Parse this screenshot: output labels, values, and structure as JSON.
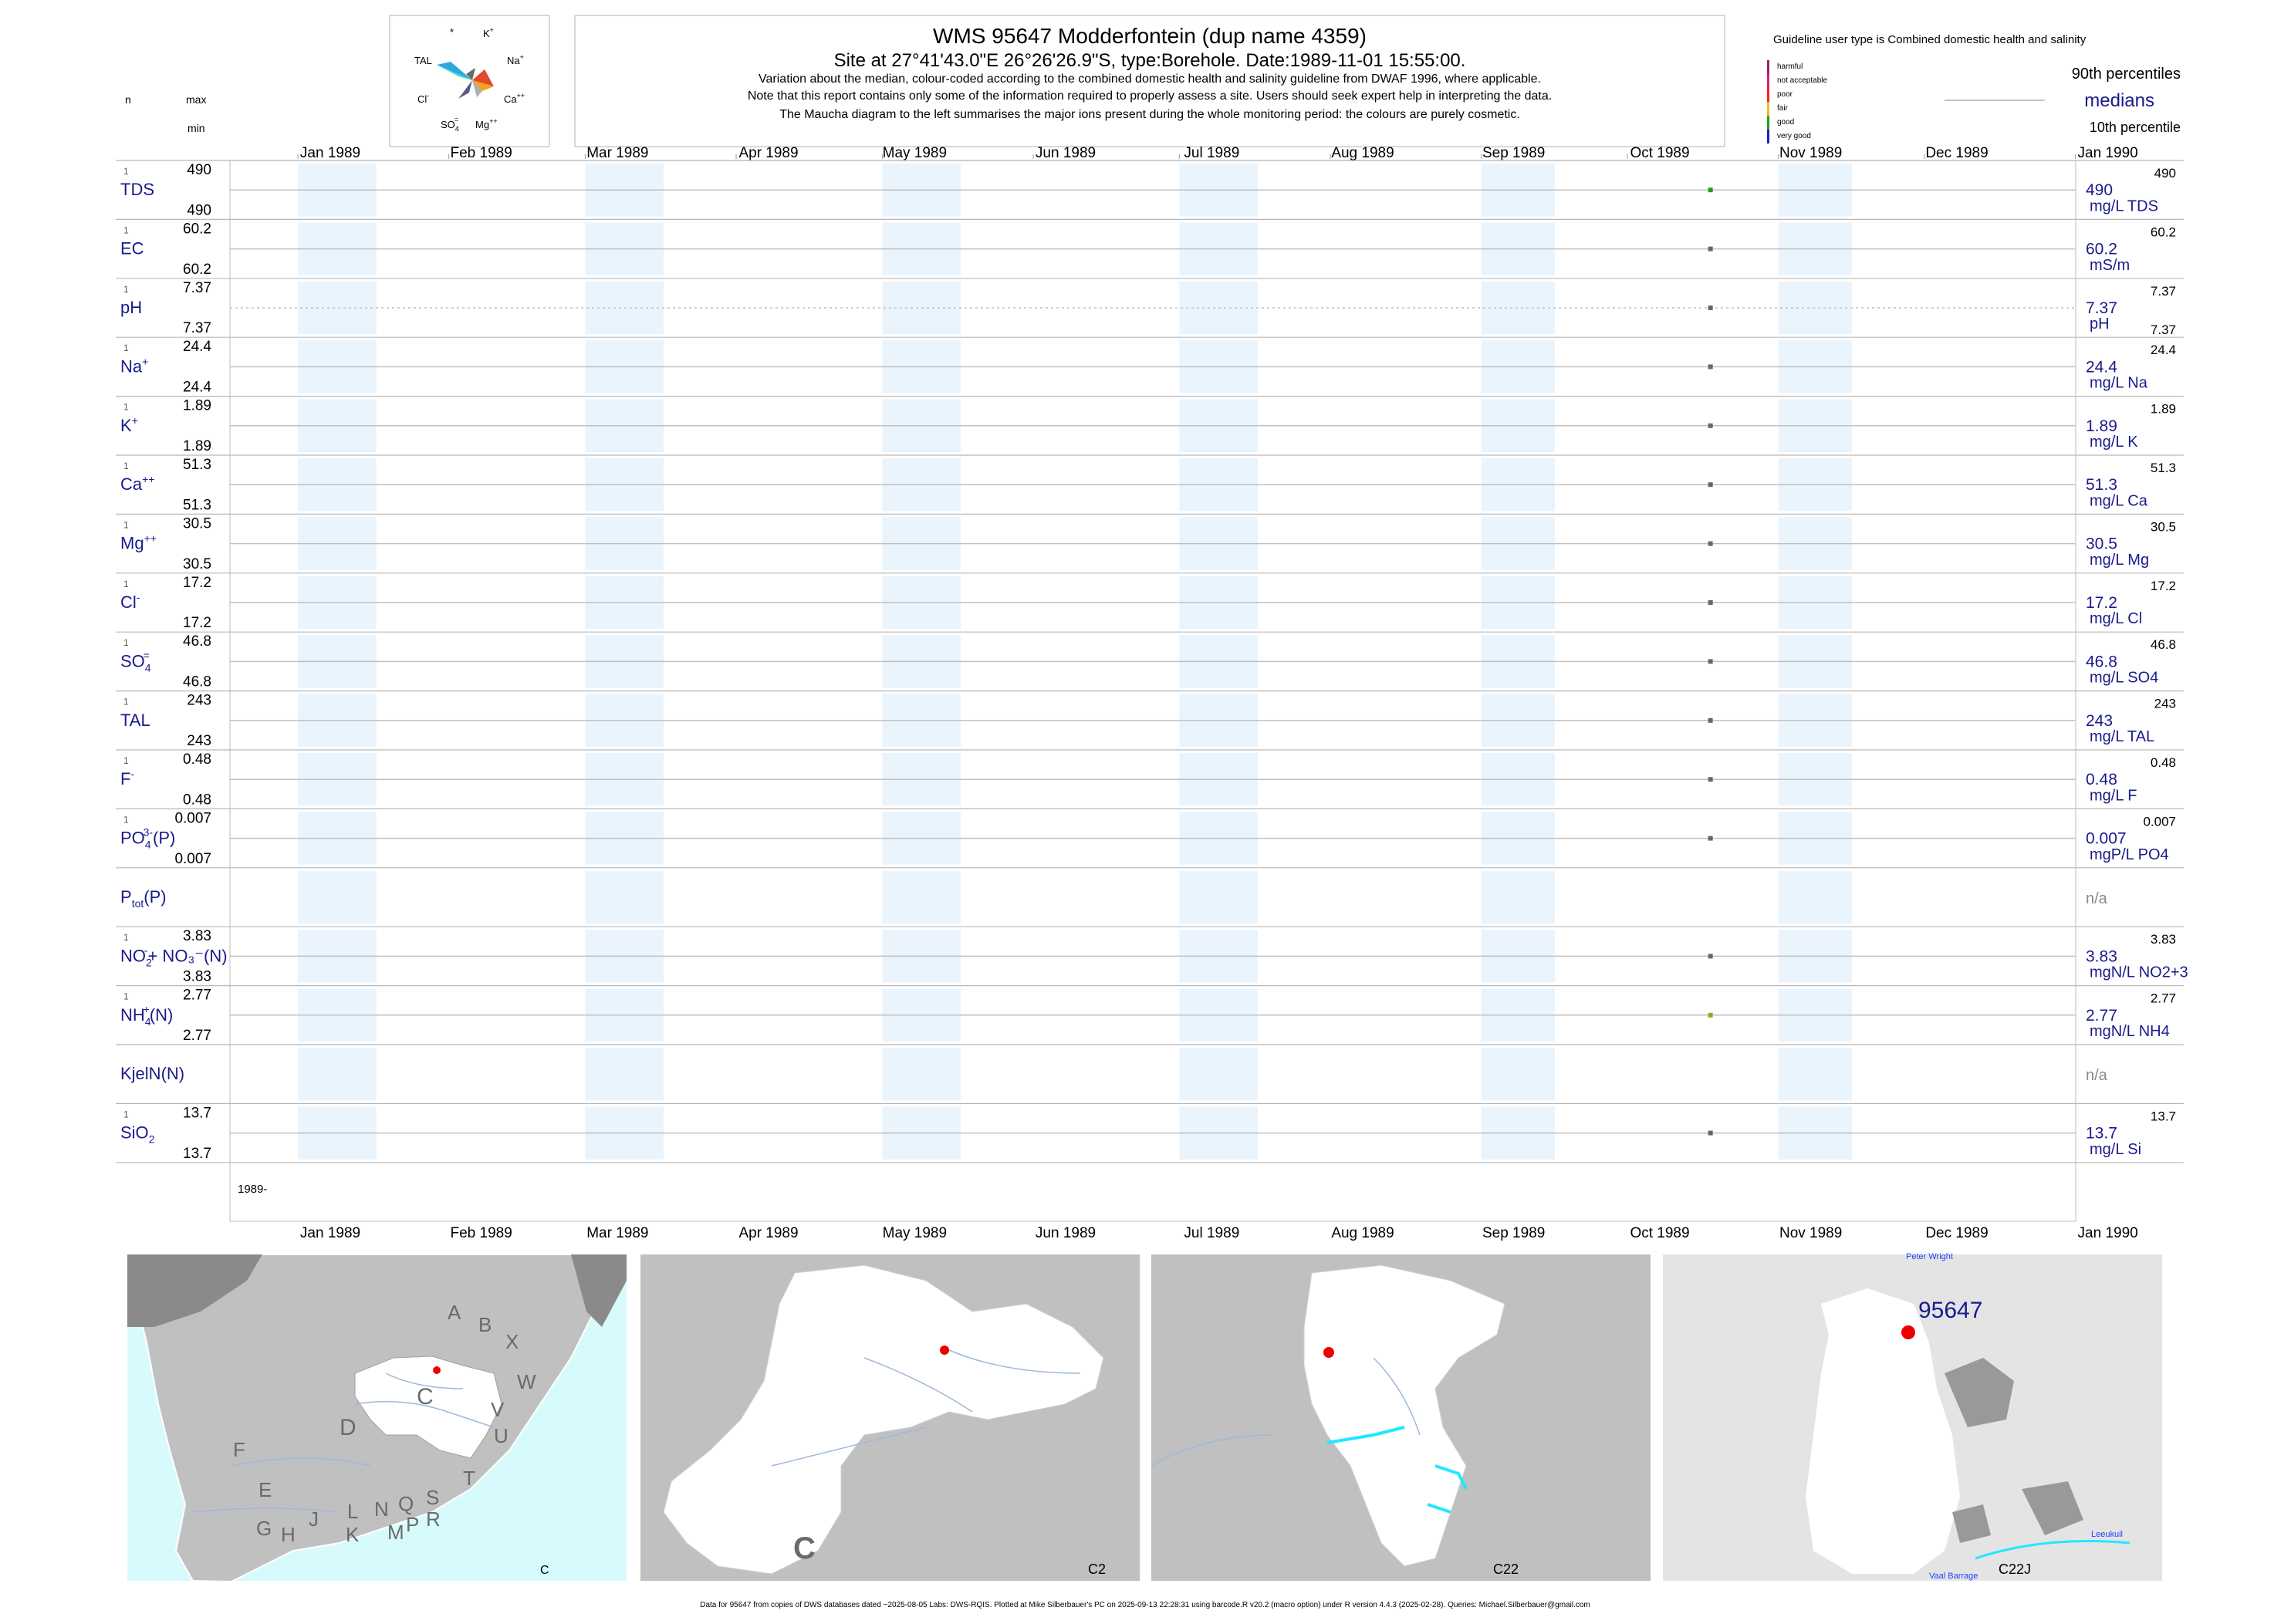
{
  "header": {
    "title": "WMS 95647  Modderfontein (dup name 4359)",
    "site": "Site at 27°41'43.0\"E 26°26'26.9\"S, type:Borehole. Date:1989-11-01 15:55:00.",
    "note1": "Variation about the median,  colour-coded according to the combined domestic health and salinity guideline from DWAF 1996, where applicable.",
    "note2": "Note that this report contains only some of the information required to properly assess a site. Users should seek expert help in interpreting the data.",
    "note3": "The Maucha diagram to the left summarises the major ions present during the whole monitoring period: the colours are purely cosmetic."
  },
  "maucha": {
    "labels": [
      "*",
      "K",
      "TAL",
      "Na",
      "Cl",
      "Ca",
      "SO",
      "Mg"
    ],
    "colors": [
      "#2ea8d8",
      "#40e0d0",
      "#e24a2a",
      "#f5a020",
      "#5a5a8a",
      "#b0b0b0",
      "#d8d8d8",
      "#6a6a6a"
    ]
  },
  "left_header": {
    "n": "n",
    "max": "max",
    "min": "min"
  },
  "legend": {
    "guideline": "Guideline user type is Combined domestic health and salinity",
    "classes": [
      {
        "label": "harmful",
        "color": "#a0206e"
      },
      {
        "label": "not acceptable",
        "color": "#e0206e"
      },
      {
        "label": "poor",
        "color": "#ff2020"
      },
      {
        "label": "fair",
        "color": "#e8c020"
      },
      {
        "label": "good",
        "color": "#20a020"
      },
      {
        "label": "very good",
        "color": "#2020c0"
      }
    ],
    "p90": "90th percentiles",
    "medians": "medians",
    "p10": "10th percentile"
  },
  "chart_data": {
    "type": "scatter",
    "x_range": [
      "1989-01-01",
      "1990-01-15"
    ],
    "month_ticks": [
      "Jan 1989",
      "Feb 1989",
      "Mar 1989",
      "Apr 1989",
      "May 1989",
      "Jun 1989",
      "Jul 1989",
      "Aug 1989",
      "Sep 1989",
      "Oct 1989",
      "Nov 1989",
      "Dec 1989",
      "Jan 1990"
    ],
    "year_label": "1989-",
    "sample_date": "1989-11-01",
    "variables": [
      {
        "name": "TDS",
        "sup": "",
        "sub": "",
        "suffix": "",
        "n": "1",
        "max": "490",
        "min": "490",
        "median": "490",
        "p90": "490",
        "p10": "",
        "unit": "mg/L TDS",
        "color": "#20a020"
      },
      {
        "name": "EC",
        "sup": "",
        "sub": "",
        "suffix": "",
        "n": "1",
        "max": "60.2",
        "min": "60.2",
        "median": "60.2",
        "p90": "60.2",
        "p10": "",
        "unit": "mS/m",
        "color": "#666666"
      },
      {
        "name": "pH",
        "sup": "",
        "sub": "",
        "suffix": "",
        "n": "1",
        "max": "7.37",
        "min": "7.37",
        "median": "7.37",
        "p90": "7.37",
        "p10": "7.37",
        "unit": "pH",
        "color": "#666666",
        "dotted": true
      },
      {
        "name": "Na",
        "sup": "+",
        "sub": "",
        "suffix": "",
        "n": "1",
        "max": "24.4",
        "min": "24.4",
        "median": "24.4",
        "p90": "24.4",
        "p10": "",
        "unit": "mg/L Na",
        "color": "#666666"
      },
      {
        "name": "K",
        "sup": "+",
        "sub": "",
        "suffix": "",
        "n": "1",
        "max": "1.89",
        "min": "1.89",
        "median": "1.89",
        "p90": "1.89",
        "p10": "",
        "unit": "mg/L K",
        "color": "#666666"
      },
      {
        "name": "Ca",
        "sup": "++",
        "sub": "",
        "suffix": "",
        "n": "1",
        "max": "51.3",
        "min": "51.3",
        "median": "51.3",
        "p90": "51.3",
        "p10": "",
        "unit": "mg/L Ca",
        "color": "#666666"
      },
      {
        "name": "Mg",
        "sup": "++",
        "sub": "",
        "suffix": "",
        "n": "1",
        "max": "30.5",
        "min": "30.5",
        "median": "30.5",
        "p90": "30.5",
        "p10": "",
        "unit": "mg/L Mg",
        "color": "#666666"
      },
      {
        "name": "Cl",
        "sup": "-",
        "sub": "",
        "suffix": "",
        "n": "1",
        "max": "17.2",
        "min": "17.2",
        "median": "17.2",
        "p90": "17.2",
        "p10": "",
        "unit": "mg/L Cl",
        "color": "#666666"
      },
      {
        "name": "SO",
        "sup": "=",
        "sub": "4",
        "suffix": "",
        "n": "1",
        "max": "46.8",
        "min": "46.8",
        "median": "46.8",
        "p90": "46.8",
        "p10": "",
        "unit": "mg/L SO4",
        "color": "#666666"
      },
      {
        "name": "TAL",
        "sup": "",
        "sub": "",
        "suffix": "",
        "n": "1",
        "max": "243",
        "min": "243",
        "median": "243",
        "p90": "243",
        "p10": "",
        "unit": "mg/L TAL",
        "color": "#666666"
      },
      {
        "name": "F",
        "sup": "-",
        "sub": "",
        "suffix": "",
        "n": "1",
        "max": "0.48",
        "min": "0.48",
        "median": "0.48",
        "p90": "0.48",
        "p10": "",
        "unit": "mg/L F",
        "color": "#666666"
      },
      {
        "name": "PO",
        "sup": "3-",
        "sub": "4",
        "suffix": "(P)",
        "n": "1",
        "max": "0.007",
        "min": "0.007",
        "median": "0.007",
        "p90": "0.007",
        "p10": "",
        "unit": "mgP/L PO4",
        "color": "#666666"
      },
      {
        "name": "P",
        "sup": "",
        "sub": "tot",
        "suffix": "(P)",
        "n": "",
        "max": "",
        "min": "",
        "median": "",
        "p90": "",
        "p10": "",
        "unit": "",
        "na": "n/a",
        "color": "#666666"
      },
      {
        "name": "NO",
        "sup": "-",
        "sub": "2",
        "suffix": "+ NO₃⁻(N)",
        "n": "1",
        "max": "3.83",
        "min": "3.83",
        "median": "3.83",
        "p90": "3.83",
        "p10": "",
        "unit": "mgN/L NO2+3",
        "color": "#666666"
      },
      {
        "name": "NH",
        "sup": "+",
        "sub": "4",
        "suffix": "(N)",
        "n": "1",
        "max": "2.77",
        "min": "2.77",
        "median": "2.77",
        "p90": "2.77",
        "p10": "",
        "unit": "mgN/L NH4",
        "color": "#a0a020"
      },
      {
        "name": "KjelN(N)",
        "sup": "",
        "sub": "",
        "suffix": "",
        "n": "",
        "max": "",
        "min": "",
        "median": "",
        "p90": "",
        "p10": "",
        "unit": "",
        "na": "n/a",
        "color": "#666666"
      },
      {
        "name": "SiO",
        "sup": "",
        "sub": "2",
        "suffix": "",
        "n": "1",
        "max": "13.7",
        "min": "13.7",
        "median": "13.7",
        "p90": "13.7",
        "p10": "",
        "unit": "mg/L Si",
        "color": "#666666"
      }
    ]
  },
  "maps": {
    "map1": {
      "label": "C",
      "regions": [
        "A",
        "B",
        "X",
        "W",
        "C",
        "D",
        "V",
        "U",
        "T",
        "F",
        "E",
        "G",
        "H",
        "J",
        "K",
        "L",
        "N",
        "M",
        "Q",
        "P",
        "R",
        "S"
      ]
    },
    "map2": {
      "label": "C2",
      "big_letter": "C"
    },
    "map3": {
      "label": "C22"
    },
    "map4": {
      "label": "C22J",
      "site": "95647",
      "places": [
        "Peter Wright",
        "Leeukuil",
        "Vaal Barrage"
      ]
    }
  },
  "footer": "Data for 95647 from copies of DWS databases dated ~2025-08-05 Labs: DWS-RQIS. Plotted at Mike Silberbauer's PC on 2025-09-13 22:28:31 using barcode.R v20.2 (macro option) under R version 4.4.3 (2025-02-28). Queries: Michael.Silberbauer@gmail.com"
}
